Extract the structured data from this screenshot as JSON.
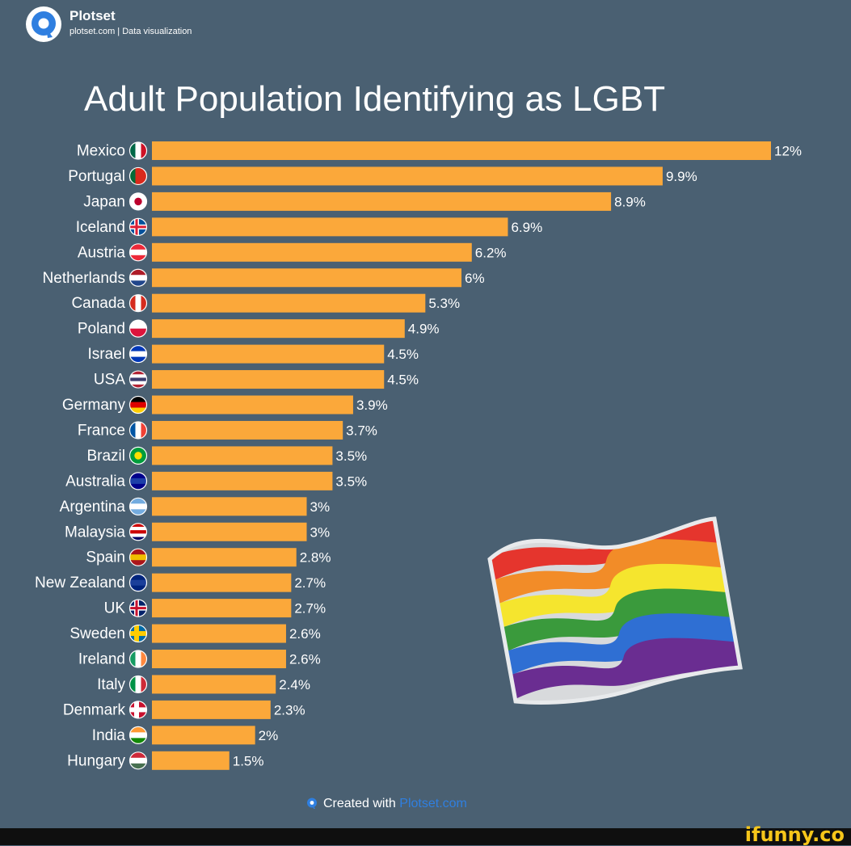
{
  "brand": {
    "name": "Plotset",
    "subtitle": "plotset.com | Data visualization",
    "logo_icon": "plotset-logo-icon",
    "logo_color": "#2f7fe0"
  },
  "chart_data": {
    "type": "bar",
    "orientation": "horizontal",
    "title": "Adult Population Identifying as LGBT",
    "categories": [
      "Mexico",
      "Portugal",
      "Japan",
      "Iceland",
      "Austria",
      "Netherlands",
      "Canada",
      "Poland",
      "Israel",
      "USA",
      "Germany",
      "France",
      "Brazil",
      "Australia",
      "Argentina",
      "Malaysia",
      "Spain",
      "New Zealand",
      "UK",
      "Sweden",
      "Ireland",
      "Italy",
      "Denmark",
      "India",
      "Hungary"
    ],
    "values": [
      12,
      9.9,
      8.9,
      6.9,
      6.2,
      6,
      5.3,
      4.9,
      4.5,
      4.5,
      3.9,
      3.7,
      3.5,
      3.5,
      3,
      3,
      2.8,
      2.7,
      2.7,
      2.6,
      2.6,
      2.4,
      2.3,
      2,
      1.5
    ],
    "value_labels": [
      "12%",
      "9.9%",
      "8.9%",
      "6.9%",
      "6.2%",
      "6%",
      "5.3%",
      "4.9%",
      "4.5%",
      "4.5%",
      "3.9%",
      "3.7%",
      "3.5%",
      "3.5%",
      "3%",
      "3%",
      "2.8%",
      "2.7%",
      "2.7%",
      "2.6%",
      "2.6%",
      "2.4%",
      "2.3%",
      "2%",
      "1.5%"
    ],
    "flag_icons": [
      "mexico-flag-icon",
      "portugal-flag-icon",
      "japan-flag-icon",
      "iceland-flag-icon",
      "austria-flag-icon",
      "netherlands-flag-icon",
      "canada-flag-icon",
      "poland-flag-icon",
      "israel-flag-icon",
      "usa-flag-icon",
      "germany-flag-icon",
      "france-flag-icon",
      "brazil-flag-icon",
      "australia-flag-icon",
      "argentina-flag-icon",
      "malaysia-flag-icon",
      "spain-flag-icon",
      "new-zealand-flag-icon",
      "uk-flag-icon",
      "sweden-flag-icon",
      "ireland-flag-icon",
      "italy-flag-icon",
      "denmark-flag-icon",
      "india-flag-icon",
      "hungary-flag-icon"
    ],
    "xlim": [
      0,
      12
    ],
    "grid": false,
    "legend": "none",
    "bar_color": "#fba83a",
    "background_color": "#4a6072",
    "text_color": "#ffffff"
  },
  "decoration": {
    "image_icon": "rainbow-pride-flag-icon",
    "stripe_colors": [
      "#e5352d",
      "#f28c28",
      "#f5e52e",
      "#3a9a3c",
      "#2f6fd3",
      "#6a2d91"
    ]
  },
  "footer": {
    "text": "Created with",
    "link": "Plotset.com",
    "icon": "plotset-logo-icon"
  },
  "watermark": {
    "text": "ifunny.co",
    "color": "#f6c61a"
  }
}
